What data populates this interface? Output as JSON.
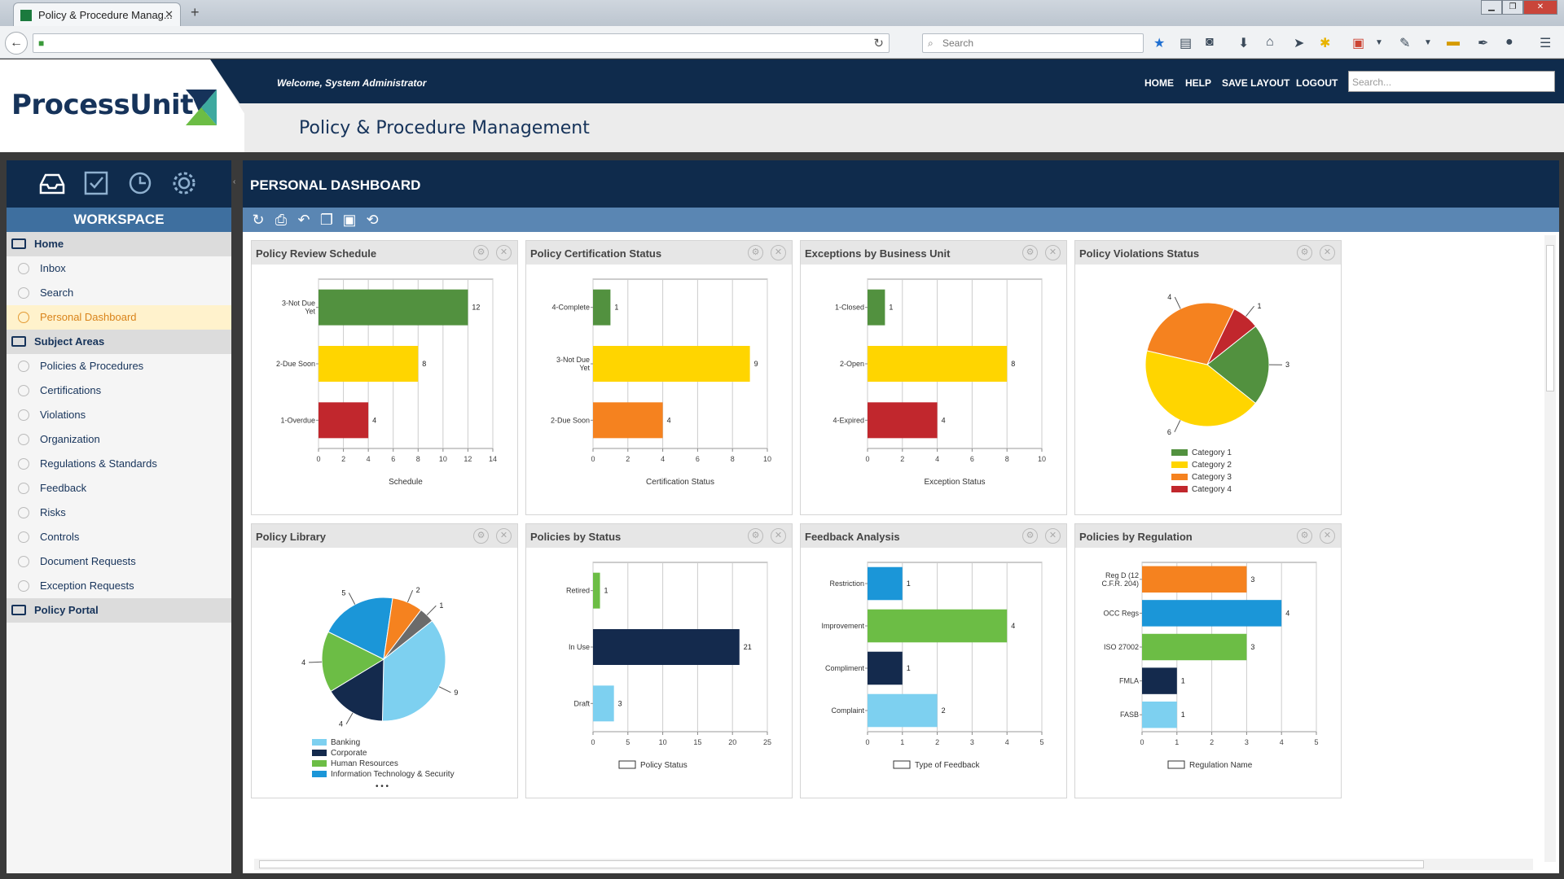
{
  "browser": {
    "tab_title": "Policy & Procedure Manag...",
    "search_placeholder": "Search"
  },
  "header": {
    "logo": "ProcessUnity",
    "welcome": "Welcome,  System Administrator",
    "nav": [
      "HOME",
      "HELP",
      "SAVE LAYOUT",
      "LOGOUT"
    ],
    "search_placeholder": "Search...",
    "app_title": "Policy & Procedure Management"
  },
  "sidebar": {
    "workspace_label": "WORKSPACE",
    "items": [
      {
        "label": "Home",
        "type": "section"
      },
      {
        "label": "Inbox",
        "type": "item"
      },
      {
        "label": "Search",
        "type": "item"
      },
      {
        "label": "Personal Dashboard",
        "type": "active"
      },
      {
        "label": "Subject Areas",
        "type": "section"
      },
      {
        "label": "Policies & Procedures",
        "type": "item"
      },
      {
        "label": "Certifications",
        "type": "item"
      },
      {
        "label": "Violations",
        "type": "item"
      },
      {
        "label": "Organization",
        "type": "item"
      },
      {
        "label": "Regulations & Standards",
        "type": "item"
      },
      {
        "label": "Feedback",
        "type": "item"
      },
      {
        "label": "Risks",
        "type": "item"
      },
      {
        "label": "Controls",
        "type": "item"
      },
      {
        "label": "Document Requests",
        "type": "item"
      },
      {
        "label": "Exception Requests",
        "type": "item"
      },
      {
        "label": "Policy Portal",
        "type": "section"
      }
    ]
  },
  "dashboard": {
    "title": "PERSONAL DASHBOARD",
    "widget_titles": [
      "Policy Review Schedule",
      "Policy Certification Status",
      "Exceptions by Business Unit",
      "Policy Violations Status",
      "Policy Library",
      "Policies by Status",
      "Feedback Analysis",
      "Policies by Regulation"
    ]
  },
  "colors": {
    "green": "#52913f",
    "yellow": "#ffd500",
    "red": "#c1272d",
    "orange": "#f5821f",
    "navy": "#142a4d",
    "lightblue": "#7dd0f0",
    "blue": "#1b96d8",
    "lightgreen": "#6cbd45",
    "gray": "#6b6b6b"
  },
  "chart_data": [
    {
      "type": "bar",
      "title": "Policy Review Schedule",
      "xlabel": "Schedule",
      "categories": [
        "3-Not Due Yet",
        "2-Due Soon",
        "1-Overdue"
      ],
      "values": [
        12,
        8,
        4
      ],
      "colors": [
        "#52913f",
        "#ffd500",
        "#c1272d"
      ],
      "xlim": [
        0,
        14
      ],
      "ticks": [
        0,
        2,
        4,
        6,
        8,
        10,
        12,
        14
      ]
    },
    {
      "type": "bar",
      "title": "Policy Certification Status",
      "xlabel": "Certification Status",
      "categories": [
        "4-Complete",
        "3-Not Due Yet",
        "2-Due Soon"
      ],
      "values": [
        1,
        9,
        4
      ],
      "colors": [
        "#52913f",
        "#ffd500",
        "#f5821f"
      ],
      "xlim": [
        0,
        10
      ],
      "ticks": [
        0,
        2,
        4,
        6,
        8,
        10
      ]
    },
    {
      "type": "bar",
      "title": "Exceptions by Business Unit",
      "xlabel": "Exception Status",
      "categories": [
        "1-Closed",
        "2-Open",
        "4-Expired"
      ],
      "values": [
        1,
        8,
        4
      ],
      "colors": [
        "#52913f",
        "#ffd500",
        "#c1272d"
      ],
      "xlim": [
        0,
        10
      ],
      "ticks": [
        0,
        2,
        4,
        6,
        8,
        10
      ]
    },
    {
      "type": "pie",
      "title": "Policy Violations Status",
      "labels": [
        "Category 1",
        "Category 2",
        "Category 3",
        "Category 4"
      ],
      "values": [
        3,
        6,
        4,
        1
      ],
      "colors": [
        "#52913f",
        "#ffd500",
        "#f5821f",
        "#c1272d"
      ]
    },
    {
      "type": "pie",
      "title": "Policy Library",
      "labels": [
        "Banking",
        "Corporate",
        "Human Resources",
        "Information Technology & Security",
        "",
        ""
      ],
      "values": [
        9,
        4,
        4,
        5,
        2,
        1
      ],
      "colors": [
        "#7dd0f0",
        "#142a4d",
        "#6cbd45",
        "#1b96d8",
        "#f5821f",
        "#6b6b6b"
      ],
      "legend_more": "• • •"
    },
    {
      "type": "bar",
      "title": "Policies by Status",
      "xlabel": "Policy Status",
      "categories": [
        "Retired",
        "In Use",
        "Draft"
      ],
      "values": [
        1,
        21,
        3
      ],
      "colors": [
        "#6cbd45",
        "#142a4d",
        "#7dd0f0"
      ],
      "xlim": [
        0,
        25
      ],
      "ticks": [
        0,
        5,
        10,
        15,
        20,
        25
      ]
    },
    {
      "type": "bar",
      "title": "Feedback Analysis",
      "xlabel": "Type of Feedback",
      "categories": [
        "Restriction",
        "Improvement",
        "Compliment",
        "Complaint"
      ],
      "values": [
        1,
        4,
        1,
        2
      ],
      "colors": [
        "#1b96d8",
        "#6cbd45",
        "#142a4d",
        "#7dd0f0"
      ],
      "xlim": [
        0,
        5
      ],
      "ticks": [
        0,
        1,
        2,
        3,
        4,
        5
      ]
    },
    {
      "type": "bar",
      "title": "Policies by Regulation",
      "xlabel": "Regulation Name",
      "categories": [
        "Reg D (12 C.F.R. 204)",
        "OCC Regs",
        "ISO 27002",
        "FMLA",
        "FASB"
      ],
      "values": [
        3,
        4,
        3,
        1,
        1
      ],
      "colors": [
        "#f5821f",
        "#1b96d8",
        "#6cbd45",
        "#142a4d",
        "#7dd0f0"
      ],
      "xlim": [
        0,
        5
      ],
      "ticks": [
        0,
        1,
        2,
        3,
        4,
        5
      ]
    }
  ]
}
